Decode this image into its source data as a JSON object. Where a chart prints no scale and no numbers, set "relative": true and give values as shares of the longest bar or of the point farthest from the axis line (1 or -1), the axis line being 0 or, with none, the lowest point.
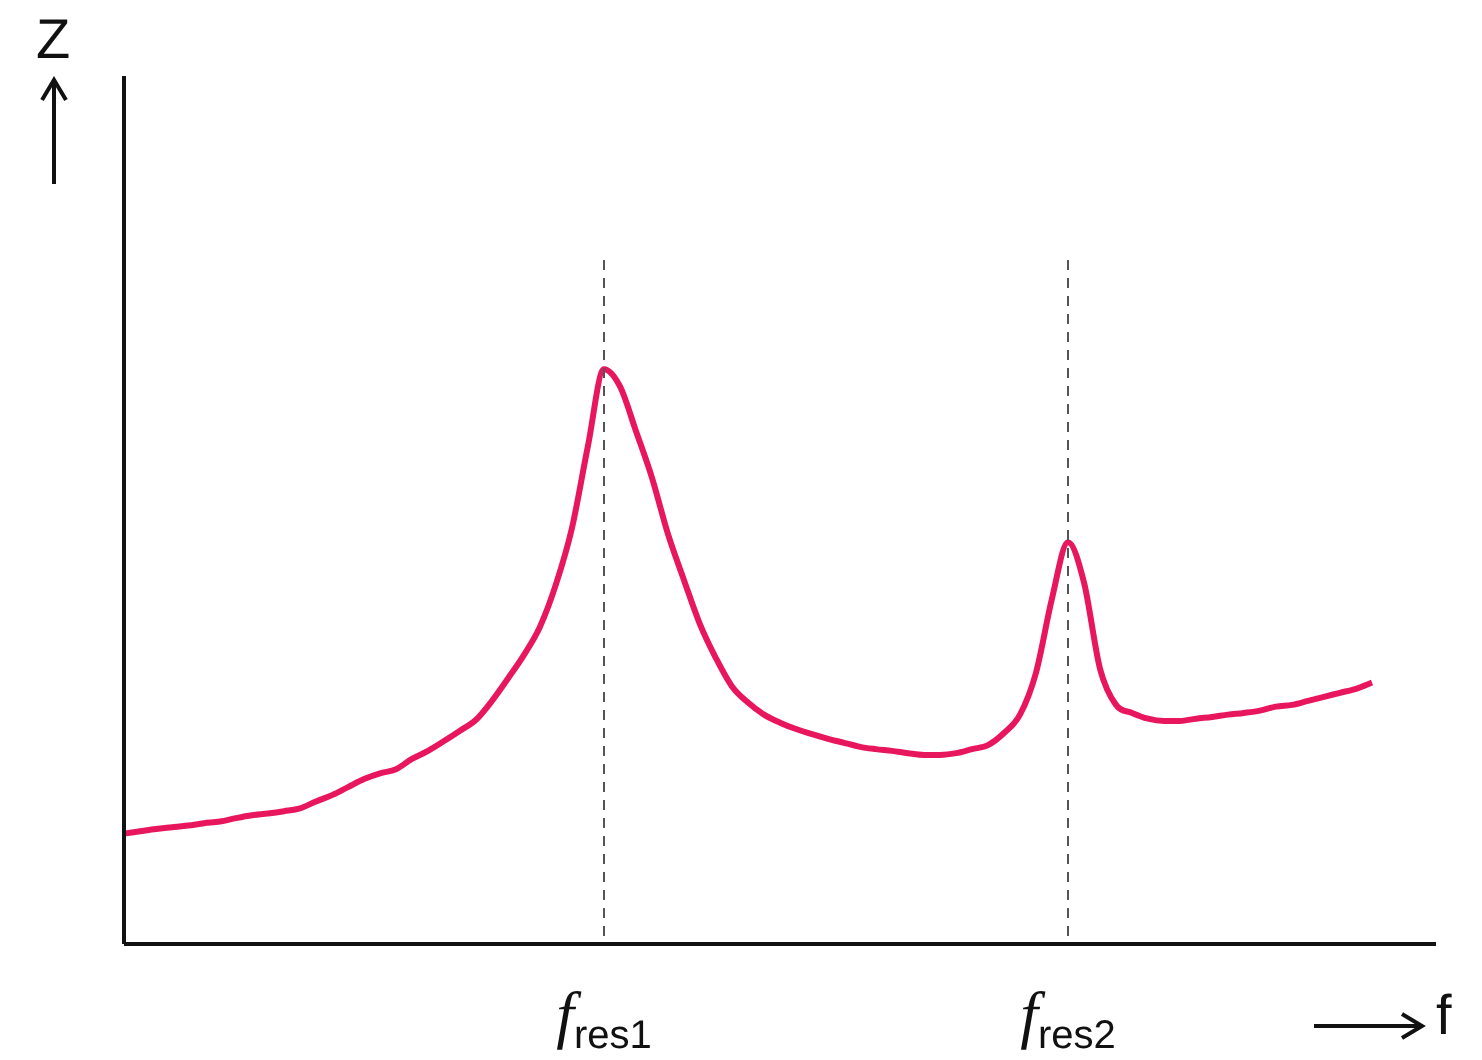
{
  "chart_data": {
    "type": "line",
    "relative": true,
    "xlabel": "f",
    "annotations": [
      "Z"
    ],
    "grid": false,
    "legend": false,
    "marker": "none",
    "line_style": "solid",
    "tick_labels": "x",
    "categories": [
      null,
      null,
      null,
      null,
      null,
      null,
      null,
      null,
      null,
      null,
      null,
      null,
      null,
      null,
      null,
      null,
      null,
      null,
      null,
      null,
      null,
      null,
      null,
      null,
      null,
      null,
      null,
      null,
      null,
      null,
      "f$_{res1}$",
      null,
      null,
      null,
      null,
      null,
      null,
      null,
      null,
      null,
      null,
      null,
      null,
      null,
      null,
      null,
      null,
      null,
      null,
      null,
      null,
      null,
      null,
      null,
      null,
      null,
      null,
      null,
      null,
      "f$_{res2}$",
      null,
      null,
      null,
      null,
      null,
      null,
      null,
      null,
      null,
      null,
      null,
      null,
      null,
      null,
      null,
      null,
      null,
      null,
      null,
      null,
      null,
      null,
      null
    ],
    "series": [
      {
        "color": "#e8175d",
        "values": [
          0.192,
          0.196,
          0.2,
          0.203,
          0.206,
          0.21,
          0.213,
          0.219,
          0.224,
          0.227,
          0.231,
          0.236,
          0.248,
          0.259,
          0.273,
          0.287,
          0.297,
          0.304,
          0.322,
          0.336,
          0.353,
          0.371,
          0.39,
          0.423,
          0.462,
          0.503,
          0.552,
          0.626,
          0.724,
          0.867,
          1,
          0.97,
          0.892,
          0.811,
          0.713,
          0.633,
          0.556,
          0.497,
          0.448,
          0.42,
          0.399,
          0.385,
          0.374,
          0.365,
          0.357,
          0.35,
          0.343,
          0.339,
          0.336,
          0.332,
          0.329,
          0.329,
          0.332,
          0.339,
          0.346,
          0.367,
          0.399,
          0.472,
          0.601,
          0.699,
          0.629,
          0.479,
          0.416,
          0.402,
          0.392,
          0.388,
          0.388,
          0.392,
          0.395,
          0.399,
          0.402,
          0.406,
          0.413,
          0.416,
          0.423,
          0.43,
          0.437,
          0.444,
          0.455,
          null,
          null,
          null,
          null
        ]
      }
    ],
    "ref_lines": [
      {
        "axis": "x",
        "value": "f$_{res1}$",
        "color": "#555555",
        "line_style": "dashed"
      },
      {
        "axis": "x",
        "value": "f$_{res2}$",
        "color": "#555555",
        "line_style": "dashed"
      }
    ]
  }
}
